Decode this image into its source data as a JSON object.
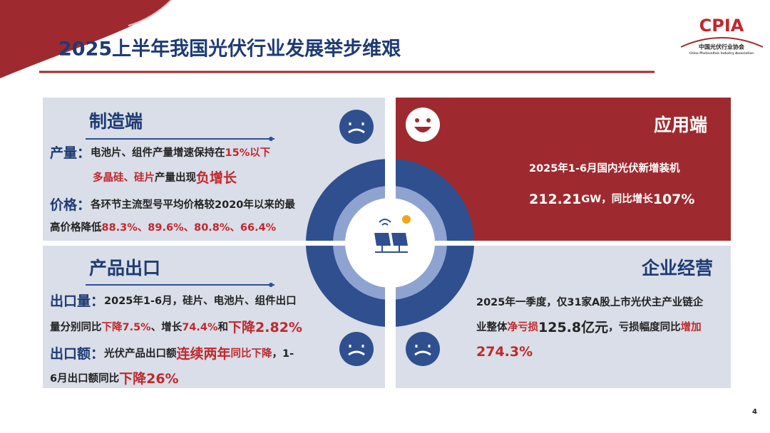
{
  "title": "2025上半年我国光伏行业发展举步维艰",
  "logo": {
    "name": "CPIA",
    "org": "中国光伏行业协会",
    "org_en": "China Photovoltaic Industry Association"
  },
  "page_number": "4",
  "panels": [
    {
      "title": "制造端",
      "lines": [
        [
          {
            "text": "产量：",
            "color": "#1f3b73",
            "large": true
          },
          {
            "text": "电池片、组件产量增速保持在",
            "color": "#222222"
          },
          {
            "text": "15%以下",
            "color": "#c0282d"
          }
        ],
        [
          {
            "text": "多晶硅、硅片",
            "color": "#c0282d"
          },
          {
            "text": "产量出现",
            "color": "#222222"
          },
          {
            "text": "负增长",
            "color": "#c0282d",
            "large": true
          }
        ],
        [
          {
            "text": "价格：",
            "color": "#1f3b73",
            "large": true
          },
          {
            "text": "各环节主流型号平均价格较2020年以来的最",
            "color": "#222222"
          }
        ],
        [
          {
            "text": "高价格降低",
            "color": "#222222"
          },
          {
            "text": "88.3%、89.6%、80.8%、66.4%",
            "color": "#c0282d"
          }
        ]
      ]
    },
    {
      "title": "应用端",
      "lines": [
        [
          {
            "text": "2025年1-6月国内光伏新增装机",
            "color": "#ffffff"
          }
        ],
        [
          {
            "text": "212.21",
            "color": "#ffffff",
            "large": true
          },
          {
            "text": "GW，同比增长",
            "color": "#ffffff"
          },
          {
            "text": "107%",
            "color": "#ffffff",
            "large": true
          }
        ]
      ]
    },
    {
      "title": "产品出口",
      "lines": [
        [
          {
            "text": "出口量：",
            "color": "#1f3b73",
            "large": true
          },
          {
            "text": "2025年1-6月，硅片、电池片、组件出口",
            "color": "#222222"
          }
        ],
        [
          {
            "text": "量分别同比",
            "color": "#222222"
          },
          {
            "text": "下降7.5%",
            "color": "#c0282d"
          },
          {
            "text": "、增长",
            "color": "#222222"
          },
          {
            "text": "74.4%",
            "color": "#c0282d"
          },
          {
            "text": "和",
            "color": "#222222"
          },
          {
            "text": "下降2.82%",
            "color": "#c0282d",
            "large": true
          }
        ],
        [
          {
            "text": "出口额：",
            "color": "#1f3b73",
            "large": true
          },
          {
            "text": "光伏产品出口额",
            "color": "#222222"
          },
          {
            "text": "连续两年",
            "color": "#c0282d",
            "large": true
          },
          {
            "text": "同比下降",
            "color": "#c0282d"
          },
          {
            "text": "，1-",
            "color": "#222222"
          }
        ],
        [
          {
            "text": "6月出口额同比",
            "color": "#222222"
          },
          {
            "text": "下降26%",
            "color": "#c0282d",
            "large": true
          }
        ]
      ]
    },
    {
      "title": "企业经营",
      "lines": [
        [
          {
            "text": "2025年一季度，仅31家A股上市光伏主产业链企",
            "color": "#222222"
          }
        ],
        [
          {
            "text": "业整体",
            "color": "#222222"
          },
          {
            "text": "净亏损",
            "color": "#c0282d"
          },
          {
            "text": "125.8亿元",
            "color": "#222222",
            "large": true
          },
          {
            "text": "，亏损幅度同比",
            "color": "#222222"
          },
          {
            "text": "增加",
            "color": "#c0282d"
          }
        ],
        [
          {
            "text": "274.3%",
            "color": "#c0282d",
            "large": true
          }
        ]
      ]
    }
  ]
}
